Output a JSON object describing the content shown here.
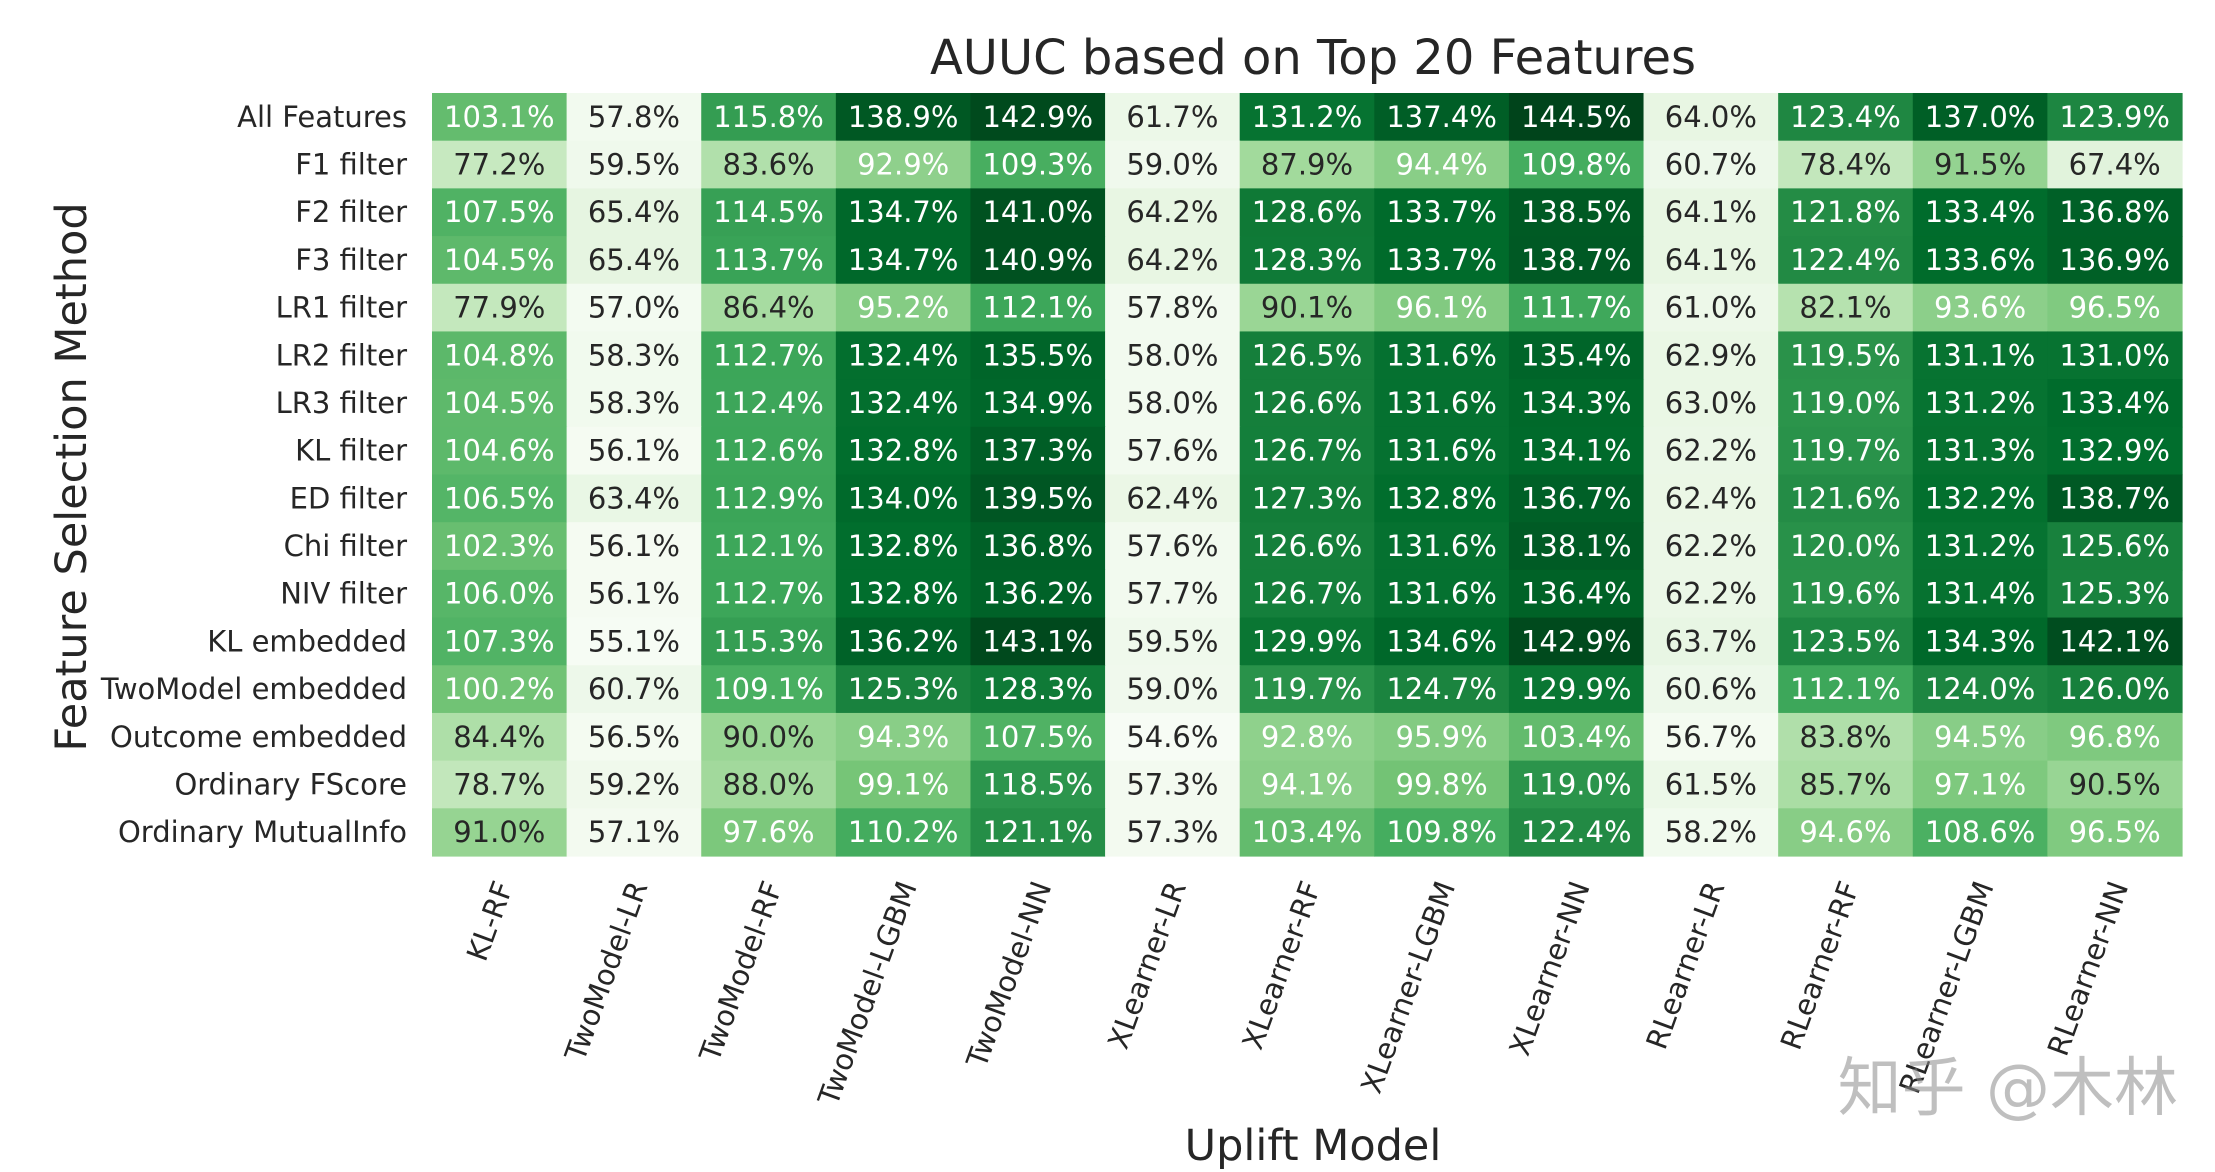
{
  "chart_data": {
    "type": "heatmap",
    "title": "AUUC based on Top 20 Features",
    "xlabel": "Uplift Model",
    "ylabel": "Feature Selection Method",
    "value_suffix": "%",
    "colormap": "Greens",
    "color_range": [
      54.6,
      144.5
    ],
    "grid": false,
    "legend": "none",
    "columns": [
      "KL-RF",
      "TwoModel-LR",
      "TwoModel-RF",
      "TwoModel-LGBM",
      "TwoModel-NN",
      "XLearner-LR",
      "XLearner-RF",
      "XLearner-LGBM",
      "XLearner-NN",
      "RLearner-LR",
      "RLearner-RF",
      "RLearner-LGBM",
      "RLearner-NN"
    ],
    "rows": [
      "All Features",
      "F1 filter",
      "F2 filter",
      "F3 filter",
      "LR1 filter",
      "LR2 filter",
      "LR3 filter",
      "KL filter",
      "ED filter",
      "Chi filter",
      "NIV filter",
      "KL embedded",
      "TwoModel embedded",
      "Outcome embedded",
      "Ordinary FScore",
      "Ordinary MutualInfo"
    ],
    "values": [
      [
        103.1,
        57.8,
        115.8,
        138.9,
        142.9,
        61.7,
        131.2,
        137.4,
        144.5,
        64.0,
        123.4,
        137.0,
        123.9
      ],
      [
        77.2,
        59.5,
        83.6,
        92.9,
        109.3,
        59.0,
        87.9,
        94.4,
        109.8,
        60.7,
        78.4,
        91.5,
        67.4
      ],
      [
        107.5,
        65.4,
        114.5,
        134.7,
        141.0,
        64.2,
        128.6,
        133.7,
        138.5,
        64.1,
        121.8,
        133.4,
        136.8
      ],
      [
        104.5,
        65.4,
        113.7,
        134.7,
        140.9,
        64.2,
        128.3,
        133.7,
        138.7,
        64.1,
        122.4,
        133.6,
        136.9
      ],
      [
        77.9,
        57.0,
        86.4,
        95.2,
        112.1,
        57.8,
        90.1,
        96.1,
        111.7,
        61.0,
        82.1,
        93.6,
        96.5
      ],
      [
        104.8,
        58.3,
        112.7,
        132.4,
        135.5,
        58.0,
        126.5,
        131.6,
        135.4,
        62.9,
        119.5,
        131.1,
        131.0
      ],
      [
        104.5,
        58.3,
        112.4,
        132.4,
        134.9,
        58.0,
        126.6,
        131.6,
        134.3,
        63.0,
        119.0,
        131.2,
        133.4
      ],
      [
        104.6,
        56.1,
        112.6,
        132.8,
        137.3,
        57.6,
        126.7,
        131.6,
        134.1,
        62.2,
        119.7,
        131.3,
        132.9
      ],
      [
        106.5,
        63.4,
        112.9,
        134.0,
        139.5,
        62.4,
        127.3,
        132.8,
        136.7,
        62.4,
        121.6,
        132.2,
        138.7
      ],
      [
        102.3,
        56.1,
        112.1,
        132.8,
        136.8,
        57.6,
        126.6,
        131.6,
        138.1,
        62.2,
        120.0,
        131.2,
        125.6
      ],
      [
        106.0,
        56.1,
        112.7,
        132.8,
        136.2,
        57.7,
        126.7,
        131.6,
        136.4,
        62.2,
        119.6,
        131.4,
        125.3
      ],
      [
        107.3,
        55.1,
        115.3,
        136.2,
        143.1,
        59.5,
        129.9,
        134.6,
        142.9,
        63.7,
        123.5,
        134.3,
        142.1
      ],
      [
        100.2,
        60.7,
        109.1,
        125.3,
        128.3,
        59.0,
        119.7,
        124.7,
        129.9,
        60.6,
        112.1,
        124.0,
        126.0
      ],
      [
        84.4,
        56.5,
        90.0,
        94.3,
        107.5,
        54.6,
        92.8,
        95.9,
        103.4,
        56.7,
        83.8,
        94.5,
        96.8
      ],
      [
        78.7,
        59.2,
        88.0,
        99.1,
        118.5,
        57.3,
        94.1,
        99.8,
        119.0,
        61.5,
        85.7,
        97.1,
        90.5
      ],
      [
        91.0,
        57.1,
        97.6,
        110.2,
        121.1,
        57.3,
        103.4,
        109.8,
        122.4,
        58.2,
        94.6,
        108.6,
        96.5
      ]
    ]
  },
  "watermark": "知乎 @木林"
}
